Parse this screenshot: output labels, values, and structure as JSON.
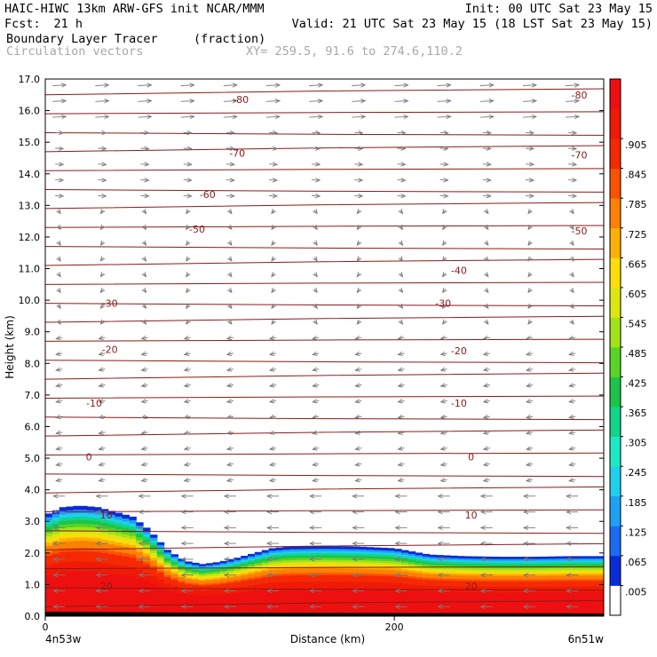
{
  "header": {
    "model_line": "HAIC-HIWC 13km ARW-GFS init   NCAR/MMM",
    "init_line": "Init: 00 UTC Sat 23 May 15",
    "fcst_label": "Fcst:",
    "fcst_value": "21 h",
    "valid_line": "Valid: 21 UTC Sat 23 May 15 (18 LST Sat 23 May 15)",
    "field_name": "Boundary Layer Tracer",
    "field_units": "(fraction)",
    "vector_label": "Circulation vectors",
    "xy_label": "XY= 259.5, 91.6 to 274.6,110.2"
  },
  "chart_data": {
    "type": "heatmap",
    "title": "Boundary Layer Tracer",
    "units": "(fraction)",
    "xlabel": "Distance (km)",
    "ylabel": "Height (km)",
    "xlim": [
      0,
      320
    ],
    "ylim": [
      0,
      17
    ],
    "x_ticks": [
      {
        "value": 0,
        "label": "0"
      },
      {
        "value": 200,
        "label": "200"
      }
    ],
    "x_end_labels": {
      "left": "4n53w",
      "right": "6n51w"
    },
    "y_ticks": [
      0.0,
      1.0,
      2.0,
      3.0,
      4.0,
      5.0,
      6.0,
      7.0,
      8.0,
      9.0,
      10.0,
      11.0,
      12.0,
      13.0,
      14.0,
      15.0,
      16.0,
      17.0
    ],
    "y_tick_labels": [
      "0.0",
      "1.0",
      "2.0",
      "3.0",
      "4.0",
      "5.0",
      "6.0",
      "7.0",
      "8.0",
      "9.0",
      "10.0",
      "11.0",
      "12.0",
      "13.0",
      "14.0",
      "15.0",
      "16.0",
      "17.0"
    ],
    "tracer_top_km": {
      "x": [
        0,
        10,
        20,
        30,
        40,
        50,
        60,
        70,
        80,
        90,
        100,
        110,
        120,
        130,
        140,
        160,
        180,
        200,
        220,
        240,
        260,
        280,
        300,
        320
      ],
      "top": [
        3.2,
        3.45,
        3.5,
        3.45,
        3.3,
        3.15,
        2.7,
        2.1,
        1.75,
        1.65,
        1.72,
        1.85,
        2.0,
        2.15,
        2.2,
        2.22,
        2.2,
        2.15,
        1.95,
        1.9,
        1.88,
        1.88,
        1.9,
        1.9
      ]
    },
    "colorbar": {
      "labels": [
        ".005",
        ".065",
        ".125",
        ".185",
        ".245",
        ".305",
        ".365",
        ".425",
        ".485",
        ".545",
        ".605",
        ".665",
        ".725",
        ".785",
        ".845",
        ".905"
      ],
      "colors": [
        "#ffffff",
        "#0a2bd8",
        "#1c6bf2",
        "#1ea0f4",
        "#1ed0ec",
        "#1de8c4",
        "#12d48a",
        "#1cc449",
        "#58d326",
        "#a2e21a",
        "#dce613",
        "#fcdc0a",
        "#fcb006",
        "#fc8104",
        "#fb5203",
        "#f52a04",
        "#f01a06",
        "#ee1010"
      ]
    },
    "temperature_contours": {
      "line_color": "#8b1a1a",
      "labels": [
        {
          "text": "-80",
          "x": 112,
          "y": 16.35
        },
        {
          "text": "-80",
          "x": 306,
          "y": 16.5
        },
        {
          "text": "-70",
          "x": 110,
          "y": 14.65
        },
        {
          "text": "-70",
          "x": 306,
          "y": 14.6
        },
        {
          "text": "-60",
          "x": 93,
          "y": 13.35
        },
        {
          "text": "-50",
          "x": 87,
          "y": 12.25
        },
        {
          "text": "-50",
          "x": 306,
          "y": 12.2
        },
        {
          "text": "-40",
          "x": 237,
          "y": 10.95
        },
        {
          "text": "-30",
          "x": 37,
          "y": 9.9
        },
        {
          "text": "-30",
          "x": 228,
          "y": 9.9
        },
        {
          "text": "-20",
          "x": 37,
          "y": 8.45
        },
        {
          "text": "-20",
          "x": 237,
          "y": 8.4
        },
        {
          "text": "-10",
          "x": 28,
          "y": 6.75
        },
        {
          "text": "-10",
          "x": 237,
          "y": 6.75
        },
        {
          "text": "0",
          "x": 25,
          "y": 5.05
        },
        {
          "text": "0",
          "x": 244,
          "y": 5.05
        },
        {
          "text": "10",
          "x": 35,
          "y": 3.2
        },
        {
          "text": "10",
          "x": 244,
          "y": 3.2
        },
        {
          "text": "20",
          "x": 35,
          "y": 0.95
        },
        {
          "text": "20",
          "x": 244,
          "y": 0.95
        }
      ]
    }
  }
}
